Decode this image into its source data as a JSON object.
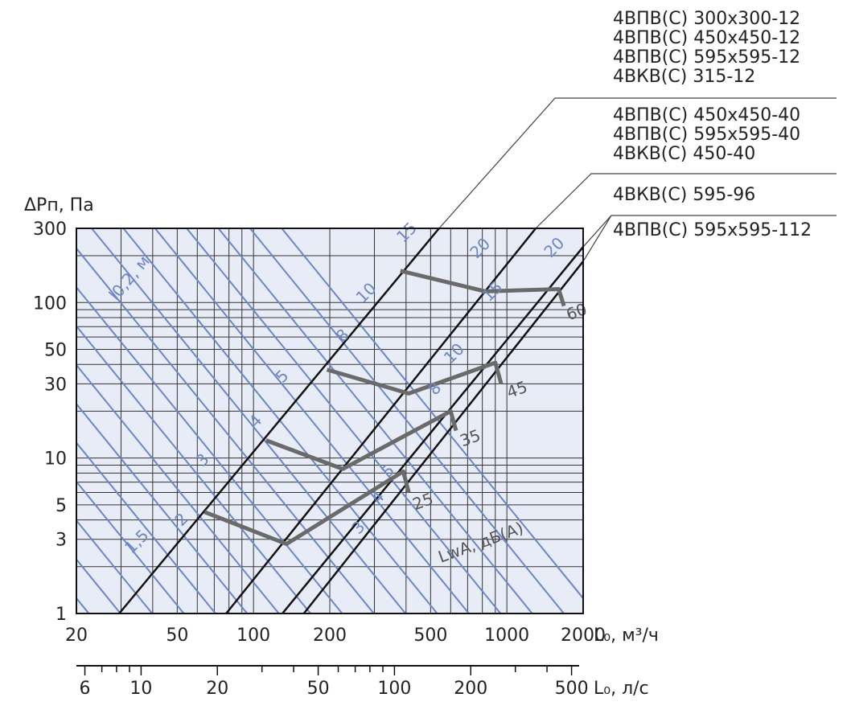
{
  "chart_data": {
    "type": "line",
    "x_scale": "log",
    "y_scale": "log",
    "xlim": [
      20,
      2000
    ],
    "ylim": [
      1,
      300
    ],
    "grid": true,
    "ylabel": "ΔPп, Па",
    "xlabel": "L₀, м³/ч",
    "x2label": "L₀, л/с",
    "x_ticks": [
      {
        "v": 20,
        "label": "20"
      },
      {
        "v": 50,
        "label": "50"
      },
      {
        "v": 100,
        "label": "100"
      },
      {
        "v": 200,
        "label": "200"
      },
      {
        "v": 500,
        "label": "500"
      },
      {
        "v": 1000,
        "label": "1000"
      },
      {
        "v": 2000,
        "label": "2000"
      }
    ],
    "x2_ticks": [
      {
        "v": 6,
        "label": "6"
      },
      {
        "v": 10,
        "label": "10"
      },
      {
        "v": 20,
        "label": "20"
      },
      {
        "v": 50,
        "label": "50"
      },
      {
        "v": 100,
        "label": "100"
      },
      {
        "v": 200,
        "label": "200"
      },
      {
        "v": 500,
        "label": "500"
      }
    ],
    "y_ticks": [
      {
        "v": 1,
        "label": "1"
      },
      {
        "v": 3,
        "label": "3"
      },
      {
        "v": 5,
        "label": "5"
      },
      {
        "v": 10,
        "label": "10"
      },
      {
        "v": 30,
        "label": "30"
      },
      {
        "v": 50,
        "label": "50"
      },
      {
        "v": 100,
        "label": "100"
      },
      {
        "v": 300,
        "label": "300"
      }
    ],
    "family_label_l02": "l0,2, м",
    "family_label_lw": "LwA, дБ(A)",
    "series": [
      {
        "name": "4ВПВ(С) 300x300-12\n4ВПВ(С) 450x450-12\n4ВПВ(С) 595x595-12\n4ВКВ(С) 315-12",
        "points": [
          [
            29.5,
            1
          ],
          [
            540,
            300
          ]
        ]
      },
      {
        "name": "4ВПВ(С) 450x450-40\n4ВПВ(С) 595x595-40\n4ВКВ(С) 450-40",
        "points": [
          [
            78,
            1
          ],
          [
            1300,
            300
          ]
        ]
      },
      {
        "name": "4ВКВ(С) 595-96",
        "points": [
          [
            130,
            1
          ],
          [
            2000,
            228
          ]
        ]
      },
      {
        "name": "4ВПВ(С) 595x595-112",
        "points": [
          [
            158,
            1
          ],
          [
            2000,
            184
          ]
        ]
      }
    ],
    "lw_curves": [
      {
        "label": "25",
        "points": [
          [
            64,
            4.5
          ],
          [
            135,
            2.8
          ],
          [
            390,
            8.2
          ],
          [
            410,
            6.0
          ]
        ]
      },
      {
        "label": "35",
        "points": [
          [
            112,
            13
          ],
          [
            225,
            8.5
          ],
          [
            600,
            20
          ],
          [
            630,
            15
          ]
        ]
      },
      {
        "label": "45",
        "points": [
          [
            195,
            37
          ],
          [
            410,
            26
          ],
          [
            900,
            41
          ],
          [
            950,
            30
          ]
        ]
      },
      {
        "label": "60",
        "points": [
          [
            380,
            160
          ],
          [
            820,
            118
          ],
          [
            1600,
            122
          ],
          [
            1680,
            95
          ]
        ]
      }
    ],
    "l02_markings": [
      {
        "label": "1,5",
        "x": 33,
        "y": 2.4
      },
      {
        "label": "2",
        "x": 52,
        "y": 3.6
      },
      {
        "label": "3",
        "x": 63,
        "y": 8.7
      },
      {
        "label": "4",
        "x": 102,
        "y": 15.5
      },
      {
        "label": "5",
        "x": 130,
        "y": 30
      },
      {
        "label": "8",
        "x": 225,
        "y": 55
      },
      {
        "label": "10",
        "x": 270,
        "y": 98
      },
      {
        "label": "15",
        "x": 390,
        "y": 240
      },
      {
        "label": "3",
        "x": 260,
        "y": 3.2
      },
      {
        "label": "4",
        "x": 310,
        "y": 5.0
      },
      {
        "label": "5",
        "x": 340,
        "y": 7.4
      },
      {
        "label": "8",
        "x": 520,
        "y": 25
      },
      {
        "label": "10",
        "x": 600,
        "y": 40
      },
      {
        "label": "15",
        "x": 850,
        "y": 100
      },
      {
        "label": "20",
        "x": 760,
        "y": 190
      },
      {
        "label": "20",
        "x": 1490,
        "y": 192
      }
    ]
  }
}
